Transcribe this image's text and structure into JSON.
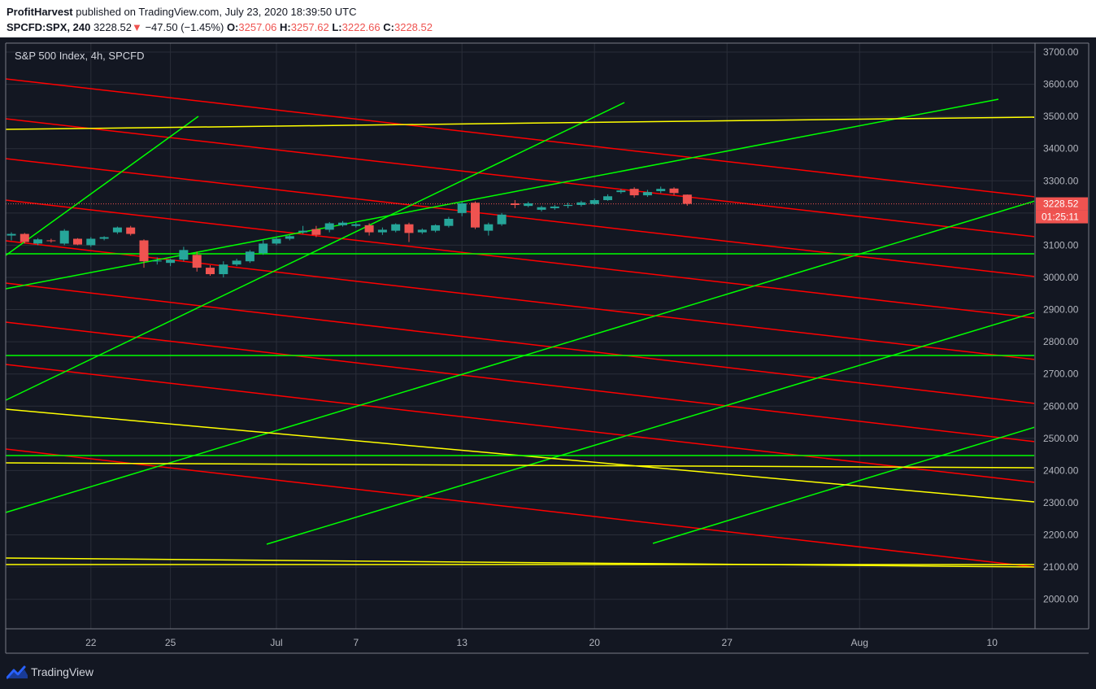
{
  "header": {
    "author": "ProfitHarvest",
    "published_text": "published on TradingView.com, July 23, 2020 18:39:50 UTC",
    "symbol": "SPCFD:SPX, 240",
    "last_price": "3228.52",
    "change_arrow": "▼",
    "change": "−47.50 (−1.45%)",
    "o_label": "O:",
    "o_value": "3257.06",
    "h_label": "H:",
    "h_value": "3257.62",
    "l_label": "L:",
    "l_value": "3222.66",
    "c_label": "C:",
    "c_value": "3228.52"
  },
  "chart_title": "S&P 500 Index, 4h, SPCFD",
  "price_label": "3228.52",
  "countdown_label": "01:25:11",
  "footer": {
    "brand": "TradingView"
  },
  "colors": {
    "background": "#131722",
    "grid": "#2a2e39",
    "axis_text": "#b2b5be",
    "up_candle": "#26a69a",
    "down_candle": "#ef5350",
    "red_line": "#ff0000",
    "green_line": "#00ff00",
    "yellow_line": "#ffff00"
  },
  "chart_data": {
    "type": "candlestick",
    "x_tick_labels": [
      {
        "label": "22",
        "index": 6
      },
      {
        "label": "25",
        "index": 12
      },
      {
        "label": "Jul",
        "index": 20
      },
      {
        "label": "7",
        "index": 26
      },
      {
        "label": "13",
        "index": 34
      },
      {
        "label": "20",
        "index": 44
      },
      {
        "label": "27",
        "index": 54
      },
      {
        "label": "Aug",
        "index": 64
      },
      {
        "label": "10",
        "index": 74
      }
    ],
    "y_range": [
      1910,
      3725
    ],
    "y_ticks": [
      2000,
      2100,
      2200,
      2300,
      2400,
      2500,
      2600,
      2700,
      2800,
      2900,
      3000,
      3100,
      3200,
      3300,
      3400,
      3500,
      3600,
      3700
    ],
    "y_tick_labels": [
      "2000.00",
      "2100.00",
      "2200.00",
      "2300.00",
      "2400.00",
      "2500.00",
      "2600.00",
      "2700.00",
      "2800.00",
      "2900.00",
      "3000.00",
      "3100.00",
      "3200.00",
      "3300.00",
      "3400.00",
      "3500.00",
      "3600.00",
      "3700.00"
    ],
    "last_price": 3228.52,
    "candles": [
      {
        "i": 0,
        "o": 3130,
        "h": 3140,
        "l": 3115,
        "c": 3135
      },
      {
        "i": 1,
        "o": 3135,
        "h": 3138,
        "l": 3105,
        "c": 3110
      },
      {
        "i": 2,
        "o": 3105,
        "h": 3122,
        "l": 3100,
        "c": 3118
      },
      {
        "i": 3,
        "o": 3115,
        "h": 3120,
        "l": 3108,
        "c": 3113
      },
      {
        "i": 4,
        "o": 3105,
        "h": 3150,
        "l": 3100,
        "c": 3145
      },
      {
        "i": 5,
        "o": 3120,
        "h": 3122,
        "l": 3100,
        "c": 3102
      },
      {
        "i": 6,
        "o": 3100,
        "h": 3125,
        "l": 3095,
        "c": 3120
      },
      {
        "i": 7,
        "o": 3120,
        "h": 3128,
        "l": 3115,
        "c": 3125
      },
      {
        "i": 8,
        "o": 3140,
        "h": 3158,
        "l": 3135,
        "c": 3155
      },
      {
        "i": 9,
        "o": 3155,
        "h": 3160,
        "l": 3130,
        "c": 3135
      },
      {
        "i": 10,
        "o": 3115,
        "h": 3118,
        "l": 3030,
        "c": 3050
      },
      {
        "i": 11,
        "o": 3050,
        "h": 3062,
        "l": 3040,
        "c": 3052
      },
      {
        "i": 12,
        "o": 3045,
        "h": 3058,
        "l": 3035,
        "c": 3055
      },
      {
        "i": 13,
        "o": 3055,
        "h": 3095,
        "l": 3050,
        "c": 3085
      },
      {
        "i": 14,
        "o": 3070,
        "h": 3080,
        "l": 3018,
        "c": 3030
      },
      {
        "i": 15,
        "o": 3030,
        "h": 3038,
        "l": 3005,
        "c": 3010
      },
      {
        "i": 16,
        "o": 3010,
        "h": 3050,
        "l": 3000,
        "c": 3040
      },
      {
        "i": 17,
        "o": 3040,
        "h": 3058,
        "l": 3035,
        "c": 3052
      },
      {
        "i": 18,
        "o": 3050,
        "h": 3085,
        "l": 3045,
        "c": 3080
      },
      {
        "i": 19,
        "o": 3075,
        "h": 3118,
        "l": 3070,
        "c": 3105
      },
      {
        "i": 20,
        "o": 3105,
        "h": 3125,
        "l": 3100,
        "c": 3120
      },
      {
        "i": 21,
        "o": 3120,
        "h": 3132,
        "l": 3115,
        "c": 3128
      },
      {
        "i": 22,
        "o": 3140,
        "h": 3160,
        "l": 3135,
        "c": 3145
      },
      {
        "i": 23,
        "o": 3150,
        "h": 3160,
        "l": 3125,
        "c": 3132
      },
      {
        "i": 24,
        "o": 3148,
        "h": 3172,
        "l": 3140,
        "c": 3168
      },
      {
        "i": 25,
        "o": 3162,
        "h": 3175,
        "l": 3158,
        "c": 3170
      },
      {
        "i": 26,
        "o": 3160,
        "h": 3170,
        "l": 3155,
        "c": 3165
      },
      {
        "i": 27,
        "o": 3162,
        "h": 3168,
        "l": 3130,
        "c": 3140
      },
      {
        "i": 28,
        "o": 3140,
        "h": 3155,
        "l": 3132,
        "c": 3148
      },
      {
        "i": 29,
        "o": 3145,
        "h": 3168,
        "l": 3140,
        "c": 3165
      },
      {
        "i": 30,
        "o": 3165,
        "h": 3170,
        "l": 3110,
        "c": 3138
      },
      {
        "i": 31,
        "o": 3140,
        "h": 3152,
        "l": 3135,
        "c": 3148
      },
      {
        "i": 32,
        "o": 3145,
        "h": 3165,
        "l": 3140,
        "c": 3162
      },
      {
        "i": 33,
        "o": 3160,
        "h": 3188,
        "l": 3155,
        "c": 3182
      },
      {
        "i": 34,
        "o": 3200,
        "h": 3235,
        "l": 3190,
        "c": 3230
      },
      {
        "i": 35,
        "o": 3232,
        "h": 3236,
        "l": 3150,
        "c": 3155
      },
      {
        "i": 36,
        "o": 3145,
        "h": 3170,
        "l": 3130,
        "c": 3165
      },
      {
        "i": 37,
        "o": 3165,
        "h": 3200,
        "l": 3160,
        "c": 3195
      },
      {
        "i": 38,
        "o": 3230,
        "h": 3240,
        "l": 3215,
        "c": 3225
      },
      {
        "i": 39,
        "o": 3222,
        "h": 3235,
        "l": 3218,
        "c": 3230
      },
      {
        "i": 40,
        "o": 3210,
        "h": 3222,
        "l": 3205,
        "c": 3218
      },
      {
        "i": 41,
        "o": 3215,
        "h": 3225,
        "l": 3210,
        "c": 3220
      },
      {
        "i": 42,
        "o": 3222,
        "h": 3232,
        "l": 3215,
        "c": 3225
      },
      {
        "i": 43,
        "o": 3225,
        "h": 3238,
        "l": 3220,
        "c": 3233
      },
      {
        "i": 44,
        "o": 3228,
        "h": 3245,
        "l": 3225,
        "c": 3240
      },
      {
        "i": 45,
        "o": 3240,
        "h": 3258,
        "l": 3238,
        "c": 3252
      },
      {
        "i": 46,
        "o": 3265,
        "h": 3275,
        "l": 3260,
        "c": 3270
      },
      {
        "i": 47,
        "o": 3275,
        "h": 3280,
        "l": 3248,
        "c": 3255
      },
      {
        "i": 48,
        "o": 3255,
        "h": 3272,
        "l": 3250,
        "c": 3265
      },
      {
        "i": 49,
        "o": 3268,
        "h": 3282,
        "l": 3262,
        "c": 3275
      },
      {
        "i": 50,
        "o": 3276,
        "h": 3280,
        "l": 3255,
        "c": 3262
      },
      {
        "i": 51,
        "o": 3257.06,
        "h": 3257.62,
        "l": 3222.66,
        "c": 3228.52
      }
    ]
  }
}
